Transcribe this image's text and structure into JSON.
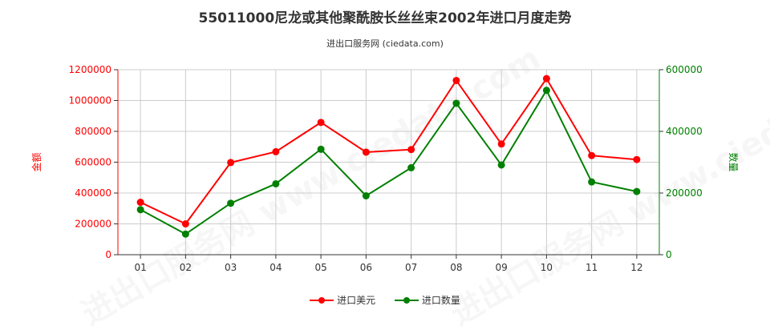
{
  "title": "55011000尼龙或其他聚酰胺长丝丝束2002年进口月度走势",
  "subtitle": "进出口服务网 (ciedata.com)",
  "watermark": "进出口服务网 www.ciedata.com",
  "colors": {
    "usd": "#ff0000",
    "qty": "#008000",
    "grid": "#cccccc",
    "axis": "#333333"
  },
  "chart_data": {
    "type": "line",
    "categories": [
      "01",
      "02",
      "03",
      "04",
      "05",
      "06",
      "07",
      "08",
      "09",
      "10",
      "11",
      "12"
    ],
    "left_axis": {
      "label": "金额",
      "ylim": [
        0,
        1200000
      ],
      "ticks": [
        "0",
        "200000",
        "400000",
        "600000",
        "800000",
        "1000000",
        "1200000"
      ]
    },
    "right_axis": {
      "label": "数量",
      "ylim": [
        0,
        600000
      ],
      "ticks": [
        "0",
        "200000",
        "400000",
        "600000"
      ]
    },
    "series": [
      {
        "name": "进口美元",
        "axis": "left",
        "color": "#ff0000",
        "values": [
          340000,
          200000,
          598000,
          668000,
          858000,
          665000,
          682000,
          1130000,
          718000,
          1142000,
          643000,
          617000
        ]
      },
      {
        "name": "进口数量",
        "axis": "right",
        "color": "#008000",
        "values": [
          146000,
          67000,
          167000,
          230000,
          342000,
          191000,
          282000,
          491000,
          291000,
          533000,
          236000,
          205000
        ]
      }
    ],
    "legend": "bottom-center",
    "grid": true
  }
}
